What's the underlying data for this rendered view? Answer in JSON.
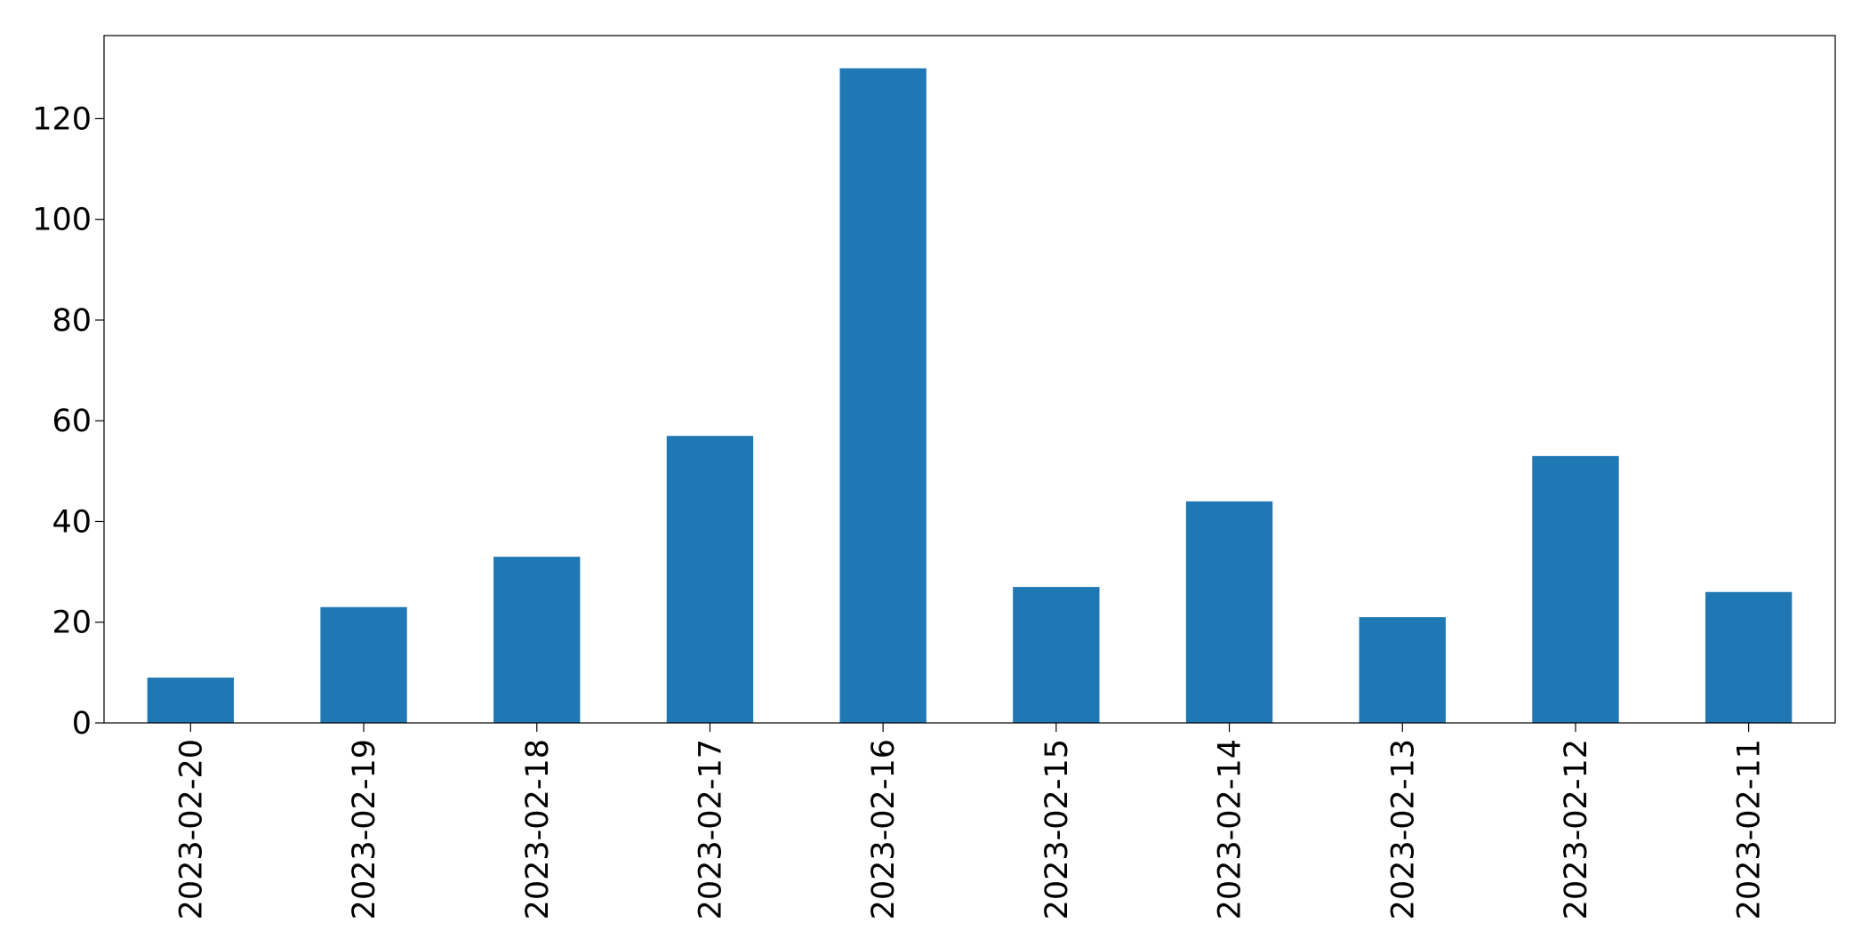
{
  "chart_data": {
    "type": "bar",
    "title": "",
    "xlabel": "",
    "ylabel": "",
    "categories": [
      "2023-02-20",
      "2023-02-19",
      "2023-02-18",
      "2023-02-17",
      "2023-02-16",
      "2023-02-15",
      "2023-02-14",
      "2023-02-13",
      "2023-02-12",
      "2023-02-11"
    ],
    "values": [
      9,
      23,
      33,
      57,
      130,
      27,
      44,
      21,
      53,
      26
    ],
    "ylim": [
      0,
      136.5
    ],
    "yticks": [
      0,
      20,
      40,
      60,
      80,
      100,
      120
    ],
    "grid": false,
    "legend": "none",
    "bar_color": "#1f77b4"
  }
}
